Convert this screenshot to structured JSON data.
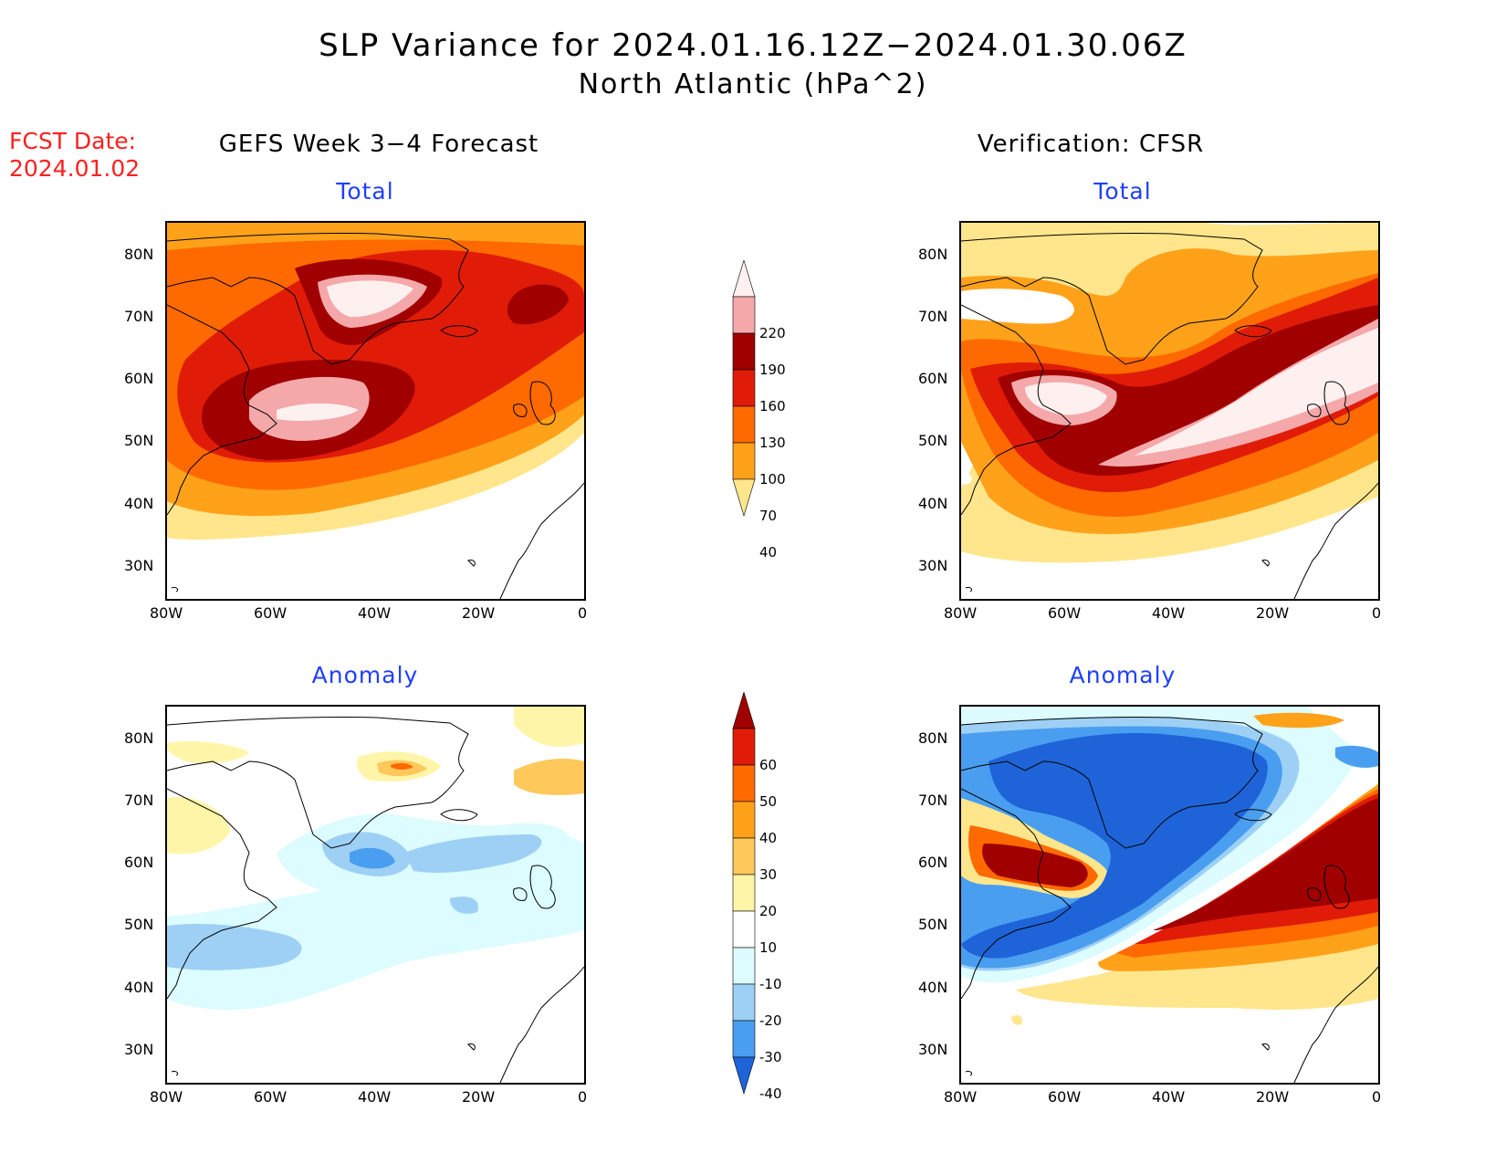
{
  "title": {
    "line1": "SLP Variance for 2024.01.16.12Z−2024.01.30.06Z",
    "line2": "North Atlantic (hPa^2)"
  },
  "fcst_date": {
    "label": "FCST Date:",
    "value": "2024.01.02"
  },
  "columns": {
    "left": "GEFS Week 3−4 Forecast",
    "right": "Verification: CFSR"
  },
  "panels": {
    "total_left": "Total",
    "total_right": "Total",
    "anom_left": "Anomaly",
    "anom_right": "Anomaly"
  },
  "axes": {
    "lon_labels": [
      "80W",
      "60W",
      "40W",
      "20W",
      "0"
    ],
    "lat_labels": [
      "80N",
      "70N",
      "60N",
      "50N",
      "40N",
      "30N"
    ]
  },
  "colorbars": {
    "total": {
      "labels": [
        "220",
        "190",
        "160",
        "130",
        "100",
        "70",
        "40"
      ],
      "colors": [
        "#fff0f0",
        "#f4a8aa",
        "#a00000",
        "#e01c08",
        "#ff6a00",
        "#ffa21a",
        "#ffe68c"
      ]
    },
    "anomaly": {
      "labels": [
        "60",
        "50",
        "40",
        "30",
        "20",
        "10",
        "-10",
        "-20",
        "-30",
        "-40"
      ],
      "colors": [
        "#a00000",
        "#e01c08",
        "#ff6a00",
        "#ffa21a",
        "#ffc85a",
        "#fff5a8",
        "#ffffff",
        "#dcfcff",
        "#9ed0f5",
        "#4a9ef0",
        "#1e64d8"
      ]
    }
  }
}
